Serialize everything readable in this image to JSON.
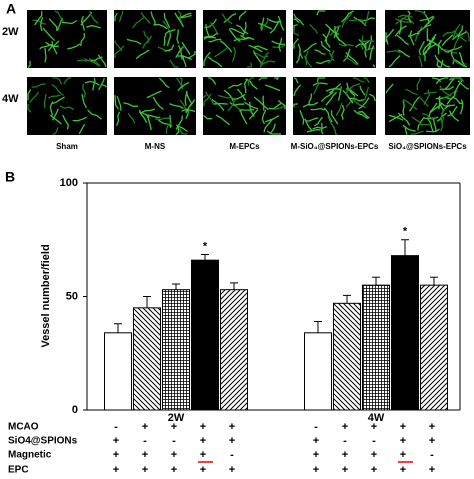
{
  "panel_a": {
    "label": "A",
    "rows": [
      "2W",
      "4W"
    ],
    "columns": [
      "Sham",
      "M-NS",
      "M-EPCs",
      "M-SiO₄@SPIONs-EPCs",
      "SiO₄@SPIONs-EPCs"
    ]
  },
  "chart_data": {
    "type": "bar",
    "panel_label": "B",
    "ylabel": "Vessel number/field",
    "categories": [
      "2W",
      "4W"
    ],
    "series": [
      {
        "pattern": "blank",
        "values": [
          34,
          34
        ],
        "errors": [
          4,
          5
        ]
      },
      {
        "pattern": "backslash",
        "values": [
          45,
          47
        ],
        "errors": [
          5,
          3.5
        ]
      },
      {
        "pattern": "grid",
        "values": [
          53,
          55
        ],
        "errors": [
          2.5,
          3.5
        ]
      },
      {
        "pattern": "solid",
        "values": [
          66,
          68
        ],
        "errors": [
          2.5,
          7
        ],
        "significance": [
          "*",
          "*"
        ]
      },
      {
        "pattern": "slash",
        "values": [
          53,
          55
        ],
        "errors": [
          3,
          3.5
        ]
      }
    ],
    "ylim": [
      0,
      100
    ],
    "yticks": [
      0,
      50,
      100
    ],
    "conditions": [
      {
        "label": "MCAO",
        "signs": [
          "-",
          "+",
          "+",
          "+",
          "+",
          "-",
          "+",
          "+",
          "+",
          "+"
        ]
      },
      {
        "label": "SiO4@SPIONs",
        "signs": [
          "+",
          "-",
          "-",
          "+",
          "+",
          "+",
          "-",
          "-",
          "+",
          "+"
        ]
      },
      {
        "label": "Magnetic",
        "signs": [
          "+",
          "+",
          "+",
          "+",
          "-",
          "+",
          "+",
          "+",
          "+",
          "-"
        ]
      },
      {
        "label": "EPC",
        "signs": [
          "+",
          "+",
          "+",
          "+",
          "+",
          "+",
          "+",
          "+",
          "+",
          "+"
        ]
      }
    ]
  }
}
